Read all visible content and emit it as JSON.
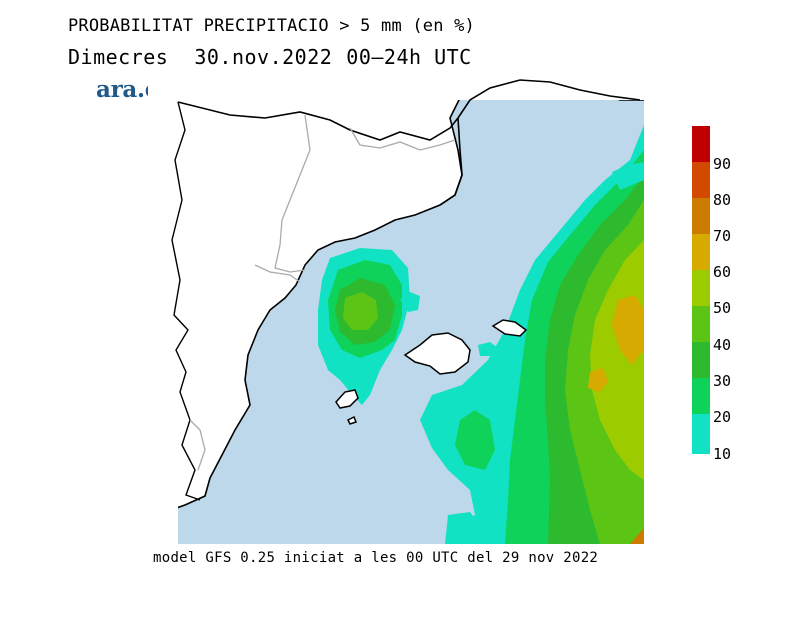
{
  "title": "PROBABILITAT PRECIPITACIO > 5 mm (en %)",
  "subtitle": {
    "day": "Dimecres",
    "date": "30.nov.2022",
    "period": "00—24h UTC"
  },
  "logo": "ara.cat",
  "footer": "model GFS 0.25 iniciat a les 00 UTC del 29 nov 2022",
  "colorbar": {
    "labels": [
      "90",
      "80",
      "70",
      "60",
      "50",
      "40",
      "30",
      "20",
      "10"
    ],
    "colors": [
      "#c00000",
      "#d24a00",
      "#cc7a00",
      "#d6aa00",
      "#9ccc00",
      "#5cc414",
      "#2eba2e",
      "#0ed25a",
      "#12e2c4"
    ]
  },
  "colors": {
    "sea": "#bcd8ea",
    "land": "#ffffff",
    "coast": "#000000",
    "border": "#aaaaaa"
  }
}
